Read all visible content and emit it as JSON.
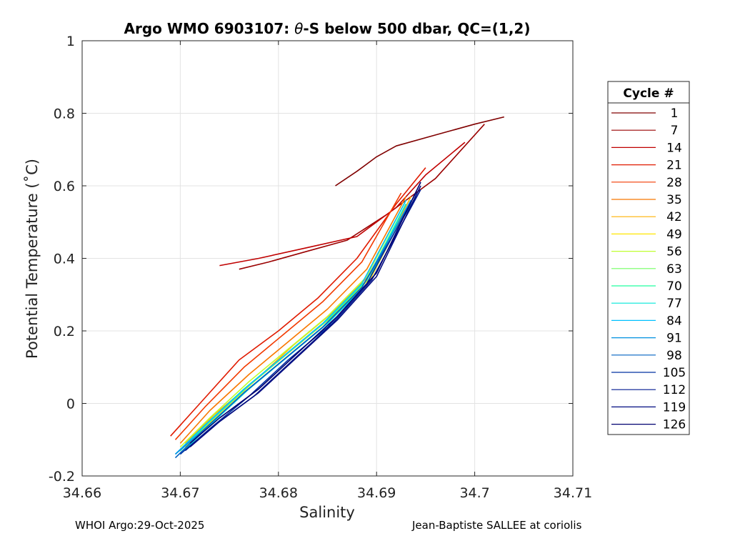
{
  "chart_data": {
    "type": "line",
    "title_prefix": "Argo WMO 6903107: ",
    "title_theta": "θ",
    "title_suffix": "-S below 500 dbar,  QC=(1,2)",
    "xlabel": "Salinity",
    "ylabel": "Potential Temperature (˚C)",
    "xlim": [
      34.66,
      34.71
    ],
    "ylim": [
      -0.2,
      1
    ],
    "xticks": [
      "34.66",
      "34.67",
      "34.68",
      "34.69",
      "34.7",
      "34.71"
    ],
    "yticks": [
      "-0.2",
      "0",
      "0.2",
      "0.4",
      "0.6",
      "0.8",
      "1"
    ],
    "grid": true,
    "legend_position": "right",
    "legend_title": "Cycle #",
    "legend": [
      {
        "name": "1",
        "color": "#800000"
      },
      {
        "name": "7",
        "color": "#9a0000"
      },
      {
        "name": "14",
        "color": "#c00000"
      },
      {
        "name": "21",
        "color": "#e01a00"
      },
      {
        "name": "28",
        "color": "#f23a00"
      },
      {
        "name": "35",
        "color": "#f87800"
      },
      {
        "name": "42",
        "color": "#ffb000"
      },
      {
        "name": "49",
        "color": "#ffe600"
      },
      {
        "name": "56",
        "color": "#c0ff30"
      },
      {
        "name": "63",
        "color": "#70ff60"
      },
      {
        "name": "70",
        "color": "#20ffa0"
      },
      {
        "name": "77",
        "color": "#00e8d8"
      },
      {
        "name": "84",
        "color": "#00c0ff"
      },
      {
        "name": "91",
        "color": "#0090e0"
      },
      {
        "name": "98",
        "color": "#0060c0"
      },
      {
        "name": "105",
        "color": "#0030a0"
      },
      {
        "name": "112",
        "color": "#001890"
      },
      {
        "name": "119",
        "color": "#000c80"
      },
      {
        "name": "126",
        "color": "#000070"
      }
    ],
    "series": [
      {
        "name": "1",
        "color": "#800000",
        "s": [
          34.6858,
          34.688,
          34.69,
          34.692,
          34.696,
          34.7,
          34.703
        ],
        "t": [
          0.6,
          0.64,
          0.68,
          0.71,
          0.74,
          0.77,
          0.79
        ]
      },
      {
        "name": "7",
        "color": "#9a0000",
        "s": [
          34.676,
          34.679,
          34.683,
          34.687,
          34.691,
          34.696,
          34.701
        ],
        "t": [
          0.37,
          0.39,
          0.42,
          0.45,
          0.52,
          0.62,
          0.77
        ]
      },
      {
        "name": "14",
        "color": "#c00000",
        "s": [
          34.674,
          34.678,
          34.683,
          34.688,
          34.692,
          34.695,
          34.699
        ],
        "t": [
          0.38,
          0.4,
          0.43,
          0.46,
          0.54,
          0.63,
          0.72
        ]
      },
      {
        "name": "21",
        "color": "#e01a00",
        "s": [
          34.669,
          34.672,
          34.676,
          34.68,
          34.684,
          34.688,
          34.692,
          34.695
        ],
        "t": [
          -0.09,
          0.0,
          0.12,
          0.2,
          0.29,
          0.4,
          0.55,
          0.65
        ]
      },
      {
        "name": "28",
        "color": "#f23a00",
        "s": [
          34.6695,
          34.6725,
          34.6765,
          34.6805,
          34.6845,
          34.6885,
          34.6925
        ],
        "t": [
          -0.1,
          -0.01,
          0.1,
          0.19,
          0.28,
          0.39,
          0.58
        ]
      },
      {
        "name": "35",
        "color": "#f87800",
        "s": [
          34.67,
          34.673,
          34.677,
          34.681,
          34.685,
          34.689,
          34.693
        ],
        "t": [
          -0.11,
          -0.02,
          0.08,
          0.17,
          0.26,
          0.37,
          0.57
        ]
      },
      {
        "name": "42",
        "color": "#ffb000",
        "s": [
          34.6705,
          34.6735,
          34.6775,
          34.6815,
          34.6855,
          34.6895,
          34.6935
        ],
        "t": [
          -0.11,
          -0.03,
          0.06,
          0.16,
          0.25,
          0.36,
          0.57
        ]
      },
      {
        "name": "49",
        "color": "#ffe600",
        "s": [
          34.6705,
          34.6735,
          34.6775,
          34.6815,
          34.6855,
          34.6895,
          34.6935
        ],
        "t": [
          -0.12,
          -0.04,
          0.06,
          0.15,
          0.24,
          0.35,
          0.56
        ]
      },
      {
        "name": "56",
        "color": "#c0ff30",
        "s": [
          34.67,
          34.673,
          34.677,
          34.681,
          34.685,
          34.689,
          34.693
        ],
        "t": [
          -0.12,
          -0.04,
          0.06,
          0.15,
          0.24,
          0.35,
          0.56
        ]
      },
      {
        "name": "63",
        "color": "#70ff60",
        "s": [
          34.67,
          34.673,
          34.677,
          34.681,
          34.685,
          34.689,
          34.693
        ],
        "t": [
          -0.13,
          -0.05,
          0.05,
          0.14,
          0.23,
          0.34,
          0.55
        ]
      },
      {
        "name": "70",
        "color": "#20ffa0",
        "s": [
          34.67,
          34.673,
          34.677,
          34.681,
          34.685,
          34.689,
          34.693
        ],
        "t": [
          -0.13,
          -0.05,
          0.05,
          0.14,
          0.23,
          0.34,
          0.55
        ]
      },
      {
        "name": "77",
        "color": "#00e8d8",
        "s": [
          34.67,
          34.673,
          34.677,
          34.681,
          34.685,
          34.689,
          34.693
        ],
        "t": [
          -0.14,
          -0.06,
          0.04,
          0.13,
          0.22,
          0.33,
          0.55
        ]
      },
      {
        "name": "84",
        "color": "#00c0ff",
        "s": [
          34.6695,
          34.6725,
          34.6765,
          34.6805,
          34.6845,
          34.6885,
          34.693
        ],
        "t": [
          -0.14,
          -0.06,
          0.04,
          0.13,
          0.22,
          0.33,
          0.56
        ]
      },
      {
        "name": "91",
        "color": "#0090e0",
        "s": [
          34.6695,
          34.6725,
          34.6765,
          34.6805,
          34.6845,
          34.6885,
          34.6935
        ],
        "t": [
          -0.14,
          -0.07,
          0.03,
          0.12,
          0.21,
          0.32,
          0.56
        ]
      },
      {
        "name": "98",
        "color": "#0060c0",
        "s": [
          34.6695,
          34.6725,
          34.6765,
          34.6805,
          34.6845,
          34.6885,
          34.694
        ],
        "t": [
          -0.15,
          -0.07,
          0.03,
          0.12,
          0.21,
          0.32,
          0.57
        ]
      },
      {
        "name": "105",
        "color": "#0030a0",
        "s": [
          34.67,
          34.673,
          34.677,
          34.681,
          34.685,
          34.689,
          34.694
        ],
        "t": [
          -0.14,
          -0.07,
          0.02,
          0.12,
          0.21,
          0.33,
          0.58
        ]
      },
      {
        "name": "112",
        "color": "#001890",
        "s": [
          34.6705,
          34.6735,
          34.6775,
          34.6815,
          34.6855,
          34.6895,
          34.6945
        ],
        "t": [
          -0.13,
          -0.06,
          0.02,
          0.12,
          0.22,
          0.34,
          0.59
        ]
      },
      {
        "name": "119",
        "color": "#000c80",
        "s": [
          34.671,
          34.674,
          34.678,
          34.682,
          34.686,
          34.69,
          34.6945
        ],
        "t": [
          -0.12,
          -0.05,
          0.03,
          0.13,
          0.23,
          0.35,
          0.6
        ]
      },
      {
        "name": "126",
        "color": "#000070",
        "s": [
          34.671,
          34.674,
          34.678,
          34.682,
          34.686,
          34.69,
          34.6945
        ],
        "t": [
          -0.11,
          -0.04,
          0.04,
          0.14,
          0.24,
          0.36,
          0.61
        ]
      }
    ],
    "footer_left": "WHOI Argo:29-Oct-2025",
    "footer_right": "Jean-Baptiste SALLEE at coriolis"
  }
}
